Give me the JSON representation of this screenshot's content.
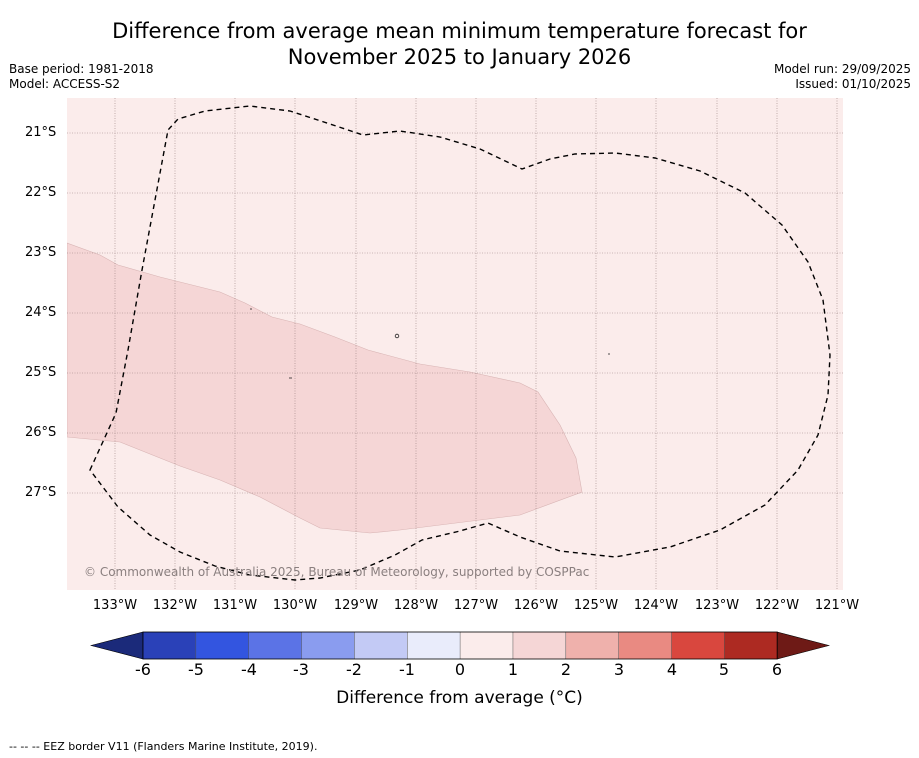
{
  "title_line1": "Difference from average mean minimum temperature forecast for",
  "title_line2": "November 2025 to January 2026",
  "meta": {
    "base_period": "Base period: 1981-2018",
    "model": "Model: ACCESS-S2",
    "model_run": "Model run: 29/09/2025",
    "issued": "Issued: 01/10/2025"
  },
  "map": {
    "copyright": "© Commonwealth of Australia 2025, Bureau of Meteorology, supported by COSPPac",
    "lat_labels": [
      "21°S",
      "22°S",
      "23°S",
      "24°S",
      "25°S",
      "26°S",
      "27°S"
    ],
    "lon_labels": [
      "133°W",
      "132°W",
      "131°W",
      "130°W",
      "129°W",
      "128°W",
      "127°W",
      "126°W",
      "125°W",
      "124°W",
      "123°W",
      "122°W",
      "121°W"
    ],
    "background_class": "0 to 1",
    "anomaly_region_class": "1 to 2"
  },
  "colorbar": {
    "title": "Difference from average (°C)",
    "ticks": [
      "-6",
      "-5",
      "-4",
      "-3",
      "-2",
      "-1",
      "0",
      "1",
      "2",
      "3",
      "4",
      "5",
      "6"
    ],
    "colors": [
      "#1b2a7a",
      "#2a41b8",
      "#3355e0",
      "#5b73e6",
      "#8a9cef",
      "#c3caf5",
      "#e9ecfb",
      "#fbeceb",
      "#f5d6d6",
      "#efb1ac",
      "#e98a82",
      "#d9473e",
      "#ad2a22",
      "#6e1a16"
    ]
  },
  "footer": "--  --  -- EEZ border V11 (Flanders Marine Institute, 2019)."
}
